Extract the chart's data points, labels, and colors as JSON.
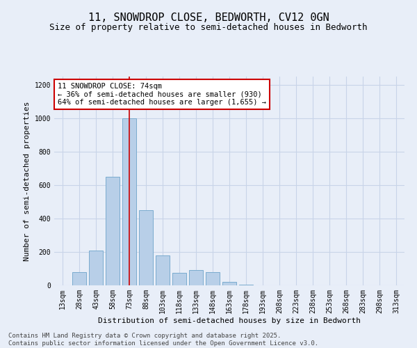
{
  "title_line1": "11, SNOWDROP CLOSE, BEDWORTH, CV12 0GN",
  "title_line2": "Size of property relative to semi-detached houses in Bedworth",
  "xlabel": "Distribution of semi-detached houses by size in Bedworth",
  "ylabel": "Number of semi-detached properties",
  "categories": [
    "13sqm",
    "28sqm",
    "43sqm",
    "58sqm",
    "73sqm",
    "88sqm",
    "103sqm",
    "118sqm",
    "133sqm",
    "148sqm",
    "163sqm",
    "178sqm",
    "193sqm",
    "208sqm",
    "223sqm",
    "238sqm",
    "253sqm",
    "268sqm",
    "283sqm",
    "298sqm",
    "313sqm"
  ],
  "values": [
    0,
    80,
    210,
    650,
    1000,
    450,
    180,
    75,
    90,
    80,
    20,
    5,
    0,
    0,
    0,
    0,
    0,
    0,
    0,
    0,
    0
  ],
  "bar_color": "#b8cfe8",
  "bar_edge_color": "#7aabce",
  "property_bin_index": 4,
  "red_line_color": "#cc0000",
  "annotation_line1": "11 SNOWDROP CLOSE: 74sqm",
  "annotation_line2": "← 36% of semi-detached houses are smaller (930)",
  "annotation_line3": "64% of semi-detached houses are larger (1,655) →",
  "annotation_box_color": "#ffffff",
  "annotation_border_color": "#cc0000",
  "ylim": [
    0,
    1250
  ],
  "yticks": [
    0,
    200,
    400,
    600,
    800,
    1000,
    1200
  ],
  "grid_color": "#c8d4e8",
  "bg_color": "#e8eef8",
  "footer": "Contains HM Land Registry data © Crown copyright and database right 2025.\nContains public sector information licensed under the Open Government Licence v3.0.",
  "title_fontsize": 11,
  "subtitle_fontsize": 9,
  "axis_label_fontsize": 8,
  "tick_fontsize": 7,
  "annotation_fontsize": 7.5,
  "footer_fontsize": 6.5
}
